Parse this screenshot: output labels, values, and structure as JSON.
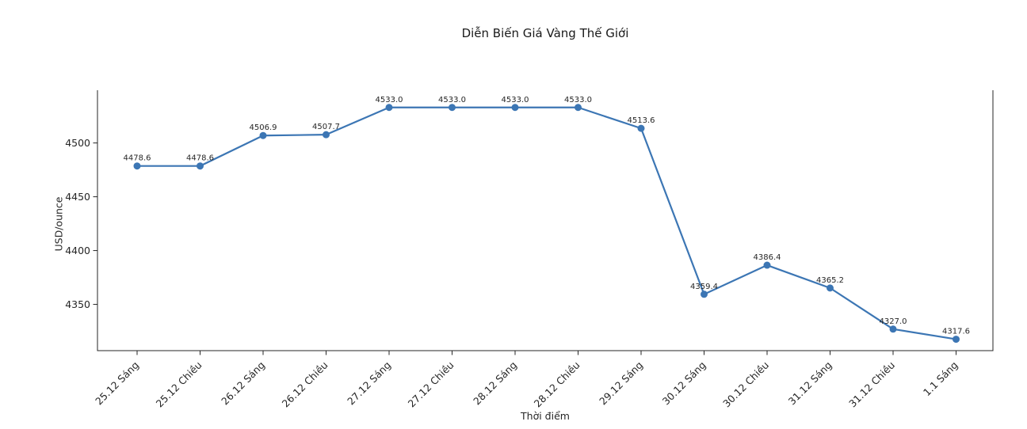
{
  "chart_data": {
    "type": "line",
    "title": "Diễn Biến Giá Vàng Thế Giới",
    "xlabel": "Thời điểm",
    "ylabel": "USD/ounce",
    "categories": [
      "25.12 Sáng",
      "25.12 Chiều",
      "26.12 Sáng",
      "26.12 Chiều",
      "27.12 Sáng",
      "27.12 Chiều",
      "28.12 Sáng",
      "28.12 Chiều",
      "29.12 Sáng",
      "30.12 Sáng",
      "30.12 Chiều",
      "31.12 Sáng",
      "31.12 Chiều",
      "1.1 Sáng"
    ],
    "values": [
      4478.6,
      4478.6,
      4506.9,
      4507.7,
      4533.0,
      4533.0,
      4533.0,
      4533.0,
      4513.6,
      4359.4,
      4386.4,
      4365.2,
      4327.0,
      4317.6
    ],
    "point_labels": [
      "4478.6",
      "4478.6",
      "4506.9",
      "4507.7",
      "4533.0",
      "4533.0",
      "4533.0",
      "4533.0",
      "4513.6",
      "4359.4",
      "4386.4",
      "4365.2",
      "4327.0",
      "4317.6"
    ],
    "yticks": [
      4350,
      4400,
      4450,
      4500
    ],
    "ylim": [
      4307,
      4549
    ],
    "grid": false,
    "legend_position": "none",
    "x_tick_rotation_deg": 45,
    "line_color": "#3c76b4",
    "marker": "circle",
    "axis_color": "#262626",
    "background_color": "#ffffff"
  }
}
